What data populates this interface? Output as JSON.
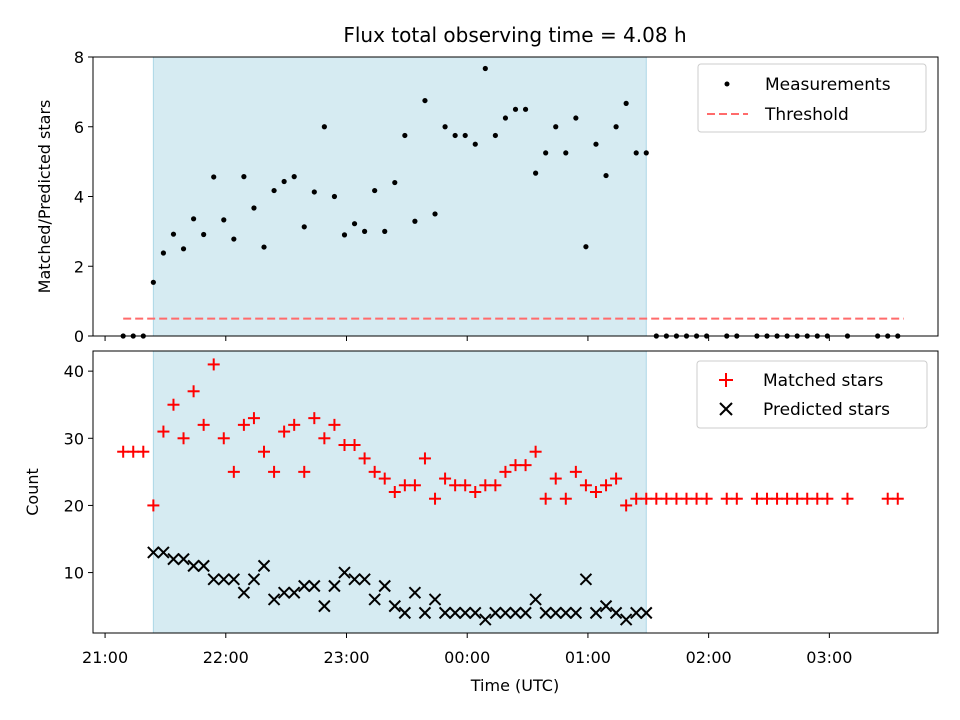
{
  "figure": {
    "title": "Flux total observing time = 4.08 h",
    "xlabel": "Time (UTC)",
    "x_ticks": [
      "21:00",
      "22:00",
      "23:00",
      "00:00",
      "01:00",
      "02:00",
      "03:00"
    ]
  },
  "chart_data": [
    {
      "type": "scatter",
      "ylabel": "Matched/Predicted stars",
      "ylim": [
        0,
        8
      ],
      "y_ticks": [
        0,
        2,
        4,
        6,
        8
      ],
      "xlim": [
        "20:54",
        "03:54"
      ],
      "legend": "top-right",
      "shaded_interval": {
        "from": "21:24",
        "to": "01:29",
        "color": "#add8e6"
      },
      "series": [
        {
          "name": "Measurements",
          "marker": "dot",
          "color": "#000000",
          "points": [
            [
              "21:09",
              0
            ],
            [
              "21:14",
              0
            ],
            [
              "21:19",
              0
            ],
            [
              "21:24",
              1.54
            ],
            [
              "21:29",
              2.38
            ],
            [
              "21:34",
              2.92
            ],
            [
              "21:39",
              2.5
            ],
            [
              "21:44",
              3.36
            ],
            [
              "21:49",
              2.91
            ],
            [
              "21:54",
              4.56
            ],
            [
              "21:59",
              3.33
            ],
            [
              "22:04",
              2.78
            ],
            [
              "22:09",
              4.57
            ],
            [
              "22:14",
              3.67
            ],
            [
              "22:19",
              2.55
            ],
            [
              "22:24",
              4.17
            ],
            [
              "22:29",
              4.43
            ],
            [
              "22:34",
              4.57
            ],
            [
              "22:39",
              3.13
            ],
            [
              "22:44",
              4.13
            ],
            [
              "22:49",
              6.0
            ],
            [
              "22:54",
              4.0
            ],
            [
              "22:59",
              2.9
            ],
            [
              "23:04",
              3.22
            ],
            [
              "23:09",
              3.0
            ],
            [
              "23:14",
              4.17
            ],
            [
              "23:19",
              3.0
            ],
            [
              "23:24",
              4.4
            ],
            [
              "23:29",
              5.75
            ],
            [
              "23:34",
              3.29
            ],
            [
              "23:39",
              6.75
            ],
            [
              "23:44",
              3.5
            ],
            [
              "23:49",
              6.0
            ],
            [
              "23:54",
              5.75
            ],
            [
              "23:59",
              5.75
            ],
            [
              "00:04",
              5.5
            ],
            [
              "00:09",
              7.67
            ],
            [
              "00:14",
              5.75
            ],
            [
              "00:19",
              6.25
            ],
            [
              "00:24",
              6.5
            ],
            [
              "00:29",
              6.5
            ],
            [
              "00:34",
              4.67
            ],
            [
              "00:39",
              5.25
            ],
            [
              "00:44",
              6.0
            ],
            [
              "00:49",
              5.25
            ],
            [
              "00:54",
              6.25
            ],
            [
              "00:59",
              2.56
            ],
            [
              "01:04",
              5.5
            ],
            [
              "01:09",
              4.6
            ],
            [
              "01:14",
              6.0
            ],
            [
              "01:19",
              6.67
            ],
            [
              "01:24",
              5.25
            ],
            [
              "01:29",
              5.25
            ],
            [
              "01:34",
              0
            ],
            [
              "01:39",
              0
            ],
            [
              "01:44",
              0
            ],
            [
              "01:49",
              0
            ],
            [
              "01:54",
              0
            ],
            [
              "01:59",
              0
            ],
            [
              "02:09",
              0
            ],
            [
              "02:14",
              0
            ],
            [
              "02:24",
              0
            ],
            [
              "02:29",
              0
            ],
            [
              "02:34",
              0
            ],
            [
              "02:39",
              0
            ],
            [
              "02:44",
              0
            ],
            [
              "02:49",
              0
            ],
            [
              "02:54",
              0
            ],
            [
              "02:59",
              0
            ],
            [
              "03:09",
              0
            ],
            [
              "03:24",
              0
            ],
            [
              "03:29",
              0
            ],
            [
              "03:34",
              0
            ]
          ]
        },
        {
          "name": "Threshold",
          "style": "dashed",
          "color": "#ff6b6b",
          "points": [
            [
              "21:09",
              0.5
            ],
            [
              "03:37",
              0.5
            ]
          ]
        }
      ]
    },
    {
      "type": "scatter",
      "ylabel": "Count",
      "ylim": [
        1,
        43
      ],
      "y_ticks": [
        10,
        20,
        30,
        40
      ],
      "xlim": [
        "20:54",
        "03:54"
      ],
      "legend": "top-right",
      "shaded_interval": {
        "from": "21:24",
        "to": "01:29",
        "color": "#add8e6"
      },
      "series": [
        {
          "name": "Matched stars",
          "marker": "plus",
          "color": "#ff0000",
          "points": [
            [
              "21:09",
              28
            ],
            [
              "21:14",
              28
            ],
            [
              "21:19",
              28
            ],
            [
              "21:24",
              20
            ],
            [
              "21:29",
              31
            ],
            [
              "21:34",
              35
            ],
            [
              "21:39",
              30
            ],
            [
              "21:44",
              37
            ],
            [
              "21:49",
              32
            ],
            [
              "21:54",
              41
            ],
            [
              "21:59",
              30
            ],
            [
              "22:04",
              25
            ],
            [
              "22:09",
              32
            ],
            [
              "22:14",
              33
            ],
            [
              "22:19",
              28
            ],
            [
              "22:24",
              25
            ],
            [
              "22:29",
              31
            ],
            [
              "22:34",
              32
            ],
            [
              "22:39",
              25
            ],
            [
              "22:44",
              33
            ],
            [
              "22:49",
              30
            ],
            [
              "22:54",
              32
            ],
            [
              "22:59",
              29
            ],
            [
              "23:04",
              29
            ],
            [
              "23:09",
              27
            ],
            [
              "23:14",
              25
            ],
            [
              "23:19",
              24
            ],
            [
              "23:24",
              22
            ],
            [
              "23:29",
              23
            ],
            [
              "23:34",
              23
            ],
            [
              "23:39",
              27
            ],
            [
              "23:44",
              21
            ],
            [
              "23:49",
              24
            ],
            [
              "23:54",
              23
            ],
            [
              "23:59",
              23
            ],
            [
              "00:04",
              22
            ],
            [
              "00:09",
              23
            ],
            [
              "00:14",
              23
            ],
            [
              "00:19",
              25
            ],
            [
              "00:24",
              26
            ],
            [
              "00:29",
              26
            ],
            [
              "00:34",
              28
            ],
            [
              "00:39",
              21
            ],
            [
              "00:44",
              24
            ],
            [
              "00:49",
              21
            ],
            [
              "00:54",
              25
            ],
            [
              "00:59",
              23
            ],
            [
              "01:04",
              22
            ],
            [
              "01:09",
              23
            ],
            [
              "01:14",
              24
            ],
            [
              "01:19",
              20
            ],
            [
              "01:24",
              21
            ],
            [
              "01:29",
              21
            ],
            [
              "01:34",
              21
            ],
            [
              "01:39",
              21
            ],
            [
              "01:44",
              21
            ],
            [
              "01:49",
              21
            ],
            [
              "01:54",
              21
            ],
            [
              "01:59",
              21
            ],
            [
              "02:09",
              21
            ],
            [
              "02:14",
              21
            ],
            [
              "02:24",
              21
            ],
            [
              "02:29",
              21
            ],
            [
              "02:34",
              21
            ],
            [
              "02:39",
              21
            ],
            [
              "02:44",
              21
            ],
            [
              "02:49",
              21
            ],
            [
              "02:54",
              21
            ],
            [
              "02:59",
              21
            ],
            [
              "03:09",
              21
            ],
            [
              "03:29",
              21
            ],
            [
              "03:34",
              21
            ]
          ]
        },
        {
          "name": "Predicted stars",
          "marker": "x",
          "color": "#000000",
          "points": [
            [
              "21:24",
              13
            ],
            [
              "21:29",
              13
            ],
            [
              "21:34",
              12
            ],
            [
              "21:39",
              12
            ],
            [
              "21:44",
              11
            ],
            [
              "21:49",
              11
            ],
            [
              "21:54",
              9
            ],
            [
              "21:59",
              9
            ],
            [
              "22:04",
              9
            ],
            [
              "22:09",
              7
            ],
            [
              "22:14",
              9
            ],
            [
              "22:19",
              11
            ],
            [
              "22:24",
              6
            ],
            [
              "22:29",
              7
            ],
            [
              "22:34",
              7
            ],
            [
              "22:39",
              8
            ],
            [
              "22:44",
              8
            ],
            [
              "22:49",
              5
            ],
            [
              "22:54",
              8
            ],
            [
              "22:59",
              10
            ],
            [
              "23:04",
              9
            ],
            [
              "23:09",
              9
            ],
            [
              "23:14",
              6
            ],
            [
              "23:19",
              8
            ],
            [
              "23:24",
              5
            ],
            [
              "23:29",
              4
            ],
            [
              "23:34",
              7
            ],
            [
              "23:39",
              4
            ],
            [
              "23:44",
              6
            ],
            [
              "23:49",
              4
            ],
            [
              "23:54",
              4
            ],
            [
              "23:59",
              4
            ],
            [
              "00:04",
              4
            ],
            [
              "00:09",
              3
            ],
            [
              "00:14",
              4
            ],
            [
              "00:19",
              4
            ],
            [
              "00:24",
              4
            ],
            [
              "00:29",
              4
            ],
            [
              "00:34",
              6
            ],
            [
              "00:39",
              4
            ],
            [
              "00:44",
              4
            ],
            [
              "00:49",
              4
            ],
            [
              "00:54",
              4
            ],
            [
              "00:59",
              9
            ],
            [
              "01:04",
              4
            ],
            [
              "01:09",
              5
            ],
            [
              "01:14",
              4
            ],
            [
              "01:19",
              3
            ],
            [
              "01:24",
              4
            ],
            [
              "01:29",
              4
            ]
          ]
        }
      ]
    }
  ]
}
